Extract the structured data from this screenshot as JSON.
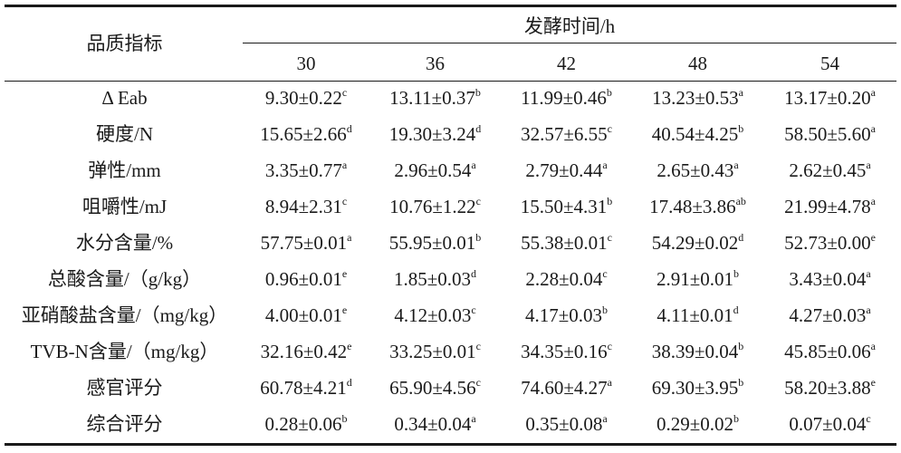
{
  "table": {
    "header": {
      "label": "品质指标",
      "group": "发酵时间/h",
      "columns": [
        "30",
        "36",
        "42",
        "48",
        "54"
      ]
    },
    "rows": [
      {
        "label": "Δ Eab",
        "cells": [
          {
            "value": "9.30±0.22",
            "sup": "c"
          },
          {
            "value": "13.11±0.37",
            "sup": "b"
          },
          {
            "value": "11.99±0.46",
            "sup": "b"
          },
          {
            "value": "13.23±0.53",
            "sup": "a"
          },
          {
            "value": "13.17±0.20",
            "sup": "a"
          }
        ]
      },
      {
        "label": "硬度/N",
        "cells": [
          {
            "value": "15.65±2.66",
            "sup": "d"
          },
          {
            "value": "19.30±3.24",
            "sup": "d"
          },
          {
            "value": "32.57±6.55",
            "sup": "c"
          },
          {
            "value": "40.54±4.25",
            "sup": "b"
          },
          {
            "value": "58.50±5.60",
            "sup": "a"
          }
        ]
      },
      {
        "label": "弹性/mm",
        "cells": [
          {
            "value": "3.35±0.77",
            "sup": "a"
          },
          {
            "value": "2.96±0.54",
            "sup": "a"
          },
          {
            "value": "2.79±0.44",
            "sup": "a"
          },
          {
            "value": "2.65±0.43",
            "sup": "a"
          },
          {
            "value": "2.62±0.45",
            "sup": "a"
          }
        ]
      },
      {
        "label": "咀嚼性/mJ",
        "cells": [
          {
            "value": "8.94±2.31",
            "sup": "c"
          },
          {
            "value": "10.76±1.22",
            "sup": "c"
          },
          {
            "value": "15.50±4.31",
            "sup": "b"
          },
          {
            "value": "17.48±3.86",
            "sup": "ab"
          },
          {
            "value": "21.99±4.78",
            "sup": "a"
          }
        ]
      },
      {
        "label": "水分含量/%",
        "cells": [
          {
            "value": "57.75±0.01",
            "sup": "a"
          },
          {
            "value": "55.95±0.01",
            "sup": "b"
          },
          {
            "value": "55.38±0.01",
            "sup": "c"
          },
          {
            "value": "54.29±0.02",
            "sup": "d"
          },
          {
            "value": "52.73±0.00",
            "sup": "e"
          }
        ]
      },
      {
        "label": "总酸含量/（g/kg）",
        "cells": [
          {
            "value": "0.96±0.01",
            "sup": "e"
          },
          {
            "value": "1.85±0.03",
            "sup": "d"
          },
          {
            "value": "2.28±0.04",
            "sup": "c"
          },
          {
            "value": "2.91±0.01",
            "sup": "b"
          },
          {
            "value": "3.43±0.04",
            "sup": "a"
          }
        ]
      },
      {
        "label": "亚硝酸盐含量/（mg/kg）",
        "cells": [
          {
            "value": "4.00±0.01",
            "sup": "e"
          },
          {
            "value": "4.12±0.03",
            "sup": "c"
          },
          {
            "value": "4.17±0.03",
            "sup": "b"
          },
          {
            "value": "4.11±0.01",
            "sup": "d"
          },
          {
            "value": "4.27±0.03",
            "sup": "a"
          }
        ]
      },
      {
        "label": "TVB-N含量/（mg/kg）",
        "cells": [
          {
            "value": "32.16±0.42",
            "sup": "e"
          },
          {
            "value": "33.25±0.01",
            "sup": "c"
          },
          {
            "value": "34.35±0.16",
            "sup": "c"
          },
          {
            "value": "38.39±0.04",
            "sup": "b"
          },
          {
            "value": "45.85±0.06",
            "sup": "a"
          }
        ]
      },
      {
        "label": "感官评分",
        "cells": [
          {
            "value": "60.78±4.21",
            "sup": "d"
          },
          {
            "value": "65.90±4.56",
            "sup": "c"
          },
          {
            "value": "74.60±4.27",
            "sup": "a"
          },
          {
            "value": "69.30±3.95",
            "sup": "b"
          },
          {
            "value": "58.20±3.88",
            "sup": "e"
          }
        ]
      },
      {
        "label": "综合评分",
        "cells": [
          {
            "value": "0.28±0.06",
            "sup": "b"
          },
          {
            "value": "0.34±0.04",
            "sup": "a"
          },
          {
            "value": "0.35±0.08",
            "sup": "a"
          },
          {
            "value": "0.29±0.02",
            "sup": "b"
          },
          {
            "value": "0.07±0.04",
            "sup": "c"
          }
        ]
      }
    ]
  }
}
